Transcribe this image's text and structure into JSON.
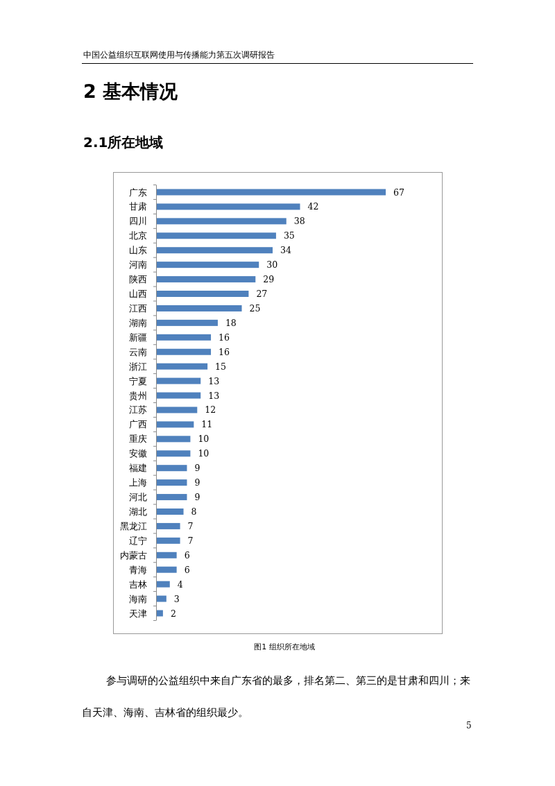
{
  "chart_data": {
    "type": "bar",
    "orientation": "horizontal",
    "title": "图1 组织所在地域",
    "categories": [
      "广东",
      "甘肃",
      "四川",
      "北京",
      "山东",
      "河南",
      "陕西",
      "山西",
      "江西",
      "湖南",
      "新疆",
      "云南",
      "浙江",
      "宁夏",
      "贵州",
      "江苏",
      "广西",
      "重庆",
      "安徽",
      "福建",
      "上海",
      "河北",
      "湖北",
      "黑龙江",
      "辽宁",
      "内蒙古",
      "青海",
      "吉林",
      "海南",
      "天津"
    ],
    "values": [
      67,
      42,
      38,
      35,
      34,
      30,
      29,
      27,
      25,
      18,
      16,
      16,
      15,
      13,
      13,
      12,
      11,
      10,
      10,
      9,
      9,
      9,
      8,
      7,
      7,
      6,
      6,
      4,
      3,
      2
    ],
    "color": "#4f81bd",
    "data_labels": true,
    "annotations": [
      "中国公益组织互联网使用与传播能力第五次调研报告",
      "2 基本情况",
      "2.1所在地域",
      "参与调研的公益组织中来自广东省的最多，排名第二、第三的是甘肃和四川；来自天津、海南、吉林省的组织最少。",
      "5"
    ]
  }
}
